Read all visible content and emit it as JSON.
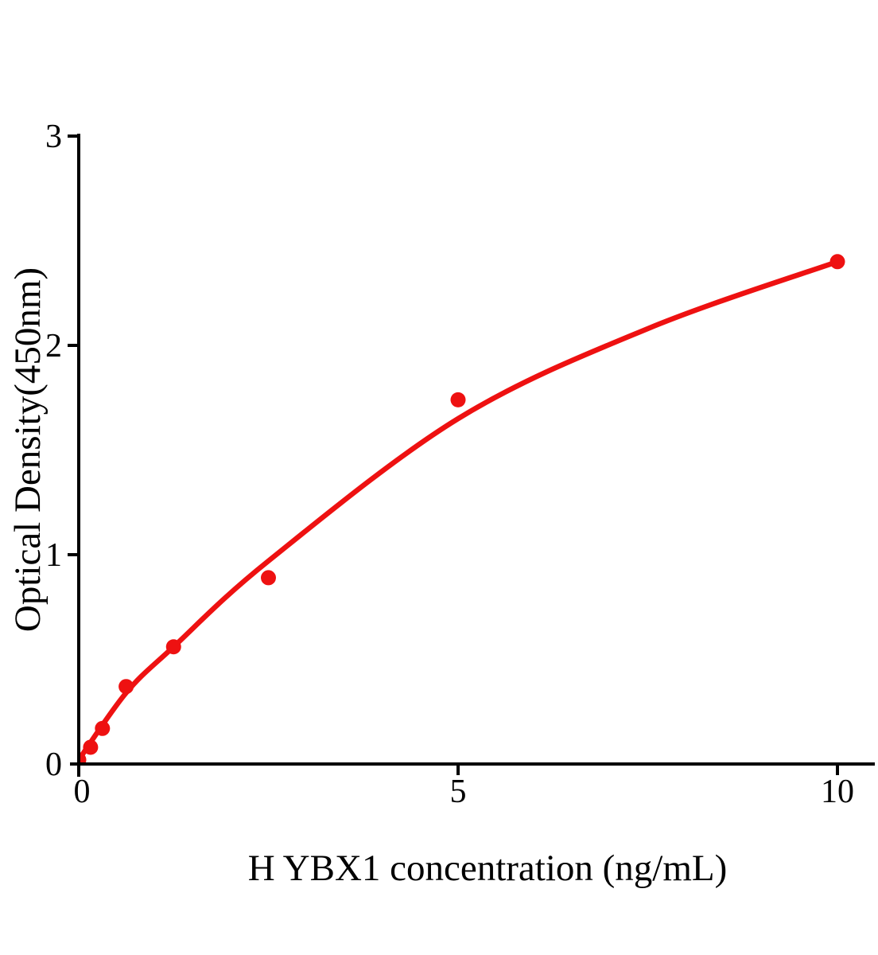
{
  "chart_data": {
    "type": "scatter",
    "title": "",
    "xlabel": "H YBX1 concentration (ng/mL)",
    "ylabel": "Optical Density(450nm)",
    "xlim": [
      0,
      10.5
    ],
    "ylim": [
      0,
      3
    ],
    "grid": false,
    "legend": "none",
    "axis_color": "#000000",
    "background_color": "#ffffff",
    "x_ticks": [
      {
        "value": 0,
        "label": "0"
      },
      {
        "value": 5,
        "label": "5"
      },
      {
        "value": 10,
        "label": "10"
      }
    ],
    "y_ticks": [
      {
        "value": 0,
        "label": "0"
      },
      {
        "value": 1,
        "label": "1"
      },
      {
        "value": 2,
        "label": "2"
      },
      {
        "value": 3,
        "label": "3"
      }
    ],
    "series": [
      {
        "name": "H YBX1 standard",
        "marker": "circle",
        "color": "#ee1111",
        "points": [
          {
            "x": 0,
            "y": 0.02
          },
          {
            "x": 0.156,
            "y": 0.08
          },
          {
            "x": 0.3125,
            "y": 0.17
          },
          {
            "x": 0.625,
            "y": 0.37
          },
          {
            "x": 1.25,
            "y": 0.56
          },
          {
            "x": 2.5,
            "y": 0.89
          },
          {
            "x": 5,
            "y": 1.74
          },
          {
            "x": 10,
            "y": 2.4
          }
        ]
      }
    ],
    "fit_curve": {
      "name": "fitted standard curve",
      "color": "#ee1111",
      "points": [
        {
          "x": 0,
          "y": 0.02
        },
        {
          "x": 0.625,
          "y": 0.34
        },
        {
          "x": 1.25,
          "y": 0.56
        },
        {
          "x": 2.5,
          "y": 0.97
        },
        {
          "x": 5,
          "y": 1.65
        },
        {
          "x": 7.5,
          "y": 2.08
        },
        {
          "x": 10,
          "y": 2.4
        }
      ]
    }
  }
}
